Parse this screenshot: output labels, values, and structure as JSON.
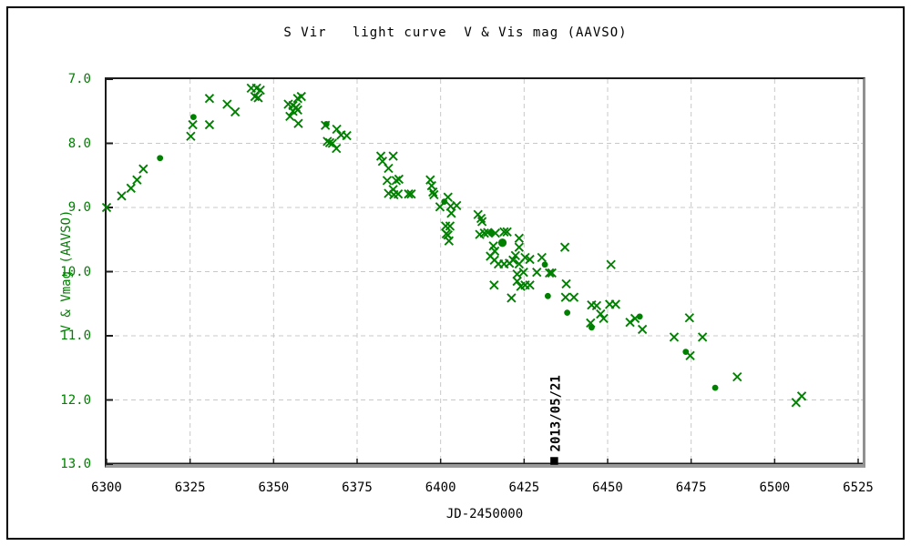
{
  "window": {
    "background": "#ffffff",
    "frame_border_color": "#000000"
  },
  "chart_data": {
    "type": "scatter",
    "title": "S Vir   light curve  V & Vis mag (AAVSO)",
    "xlabel": "JD-2450000",
    "ylabel": "V & Vmag (AAVSO)",
    "xlim": [
      6300,
      6525
    ],
    "ylim": [
      7.0,
      13.0
    ],
    "y_axis_inverted": true,
    "x_ticks": [
      6300,
      6325,
      6350,
      6375,
      6400,
      6425,
      6450,
      6475,
      6500,
      6525
    ],
    "y_ticks": [
      7.0,
      8.0,
      9.0,
      10.0,
      11.0,
      12.0,
      13.0
    ],
    "grid": {
      "style": "dashed",
      "color": "#c8c8c8"
    },
    "legend": "none",
    "colors": {
      "series_green": "#008000",
      "y_axis_text": "#008000",
      "x_axis_text": "#000000",
      "axis_dark": "#1c1c1c",
      "axis_shadow": "#9a9a9a",
      "annotation": "#000000"
    },
    "series": [
      {
        "name": "Vis",
        "marker": "x",
        "color": "#008000",
        "points": [
          [
            6300,
            9.0
          ],
          [
            6304.5,
            8.82
          ],
          [
            6307.3,
            8.7
          ],
          [
            6309.1,
            8.57
          ],
          [
            6311,
            8.4
          ],
          [
            6325.2,
            7.89
          ],
          [
            6325.8,
            7.71
          ],
          [
            6330.8,
            7.3
          ],
          [
            6330.8,
            7.71
          ],
          [
            6336.1,
            7.39
          ],
          [
            6338.5,
            7.51
          ],
          [
            6343.3,
            7.14
          ],
          [
            6344.4,
            7.27
          ],
          [
            6344.9,
            7.14
          ],
          [
            6345.4,
            7.29
          ],
          [
            6346,
            7.17
          ],
          [
            6354.4,
            7.39
          ],
          [
            6354.9,
            7.58
          ],
          [
            6355.8,
            7.41
          ],
          [
            6355.8,
            7.5
          ],
          [
            6356.7,
            7.44
          ],
          [
            6357.2,
            7.3
          ],
          [
            6357.2,
            7.48
          ],
          [
            6357.4,
            7.69
          ],
          [
            6358.3,
            7.27
          ],
          [
            6365.5,
            7.72
          ],
          [
            6366.1,
            7.97
          ],
          [
            6366.8,
            7.99
          ],
          [
            6367.6,
            8.0
          ],
          [
            6368.8,
            8.08
          ],
          [
            6368.9,
            7.78
          ],
          [
            6370.2,
            7.87
          ],
          [
            6371.9,
            7.88
          ],
          [
            6382.1,
            8.2
          ],
          [
            6382.6,
            8.28
          ],
          [
            6384.0,
            8.58
          ],
          [
            6384.4,
            8.39
          ],
          [
            6384.4,
            8.78
          ],
          [
            6385.8,
            8.2
          ],
          [
            6385.8,
            8.72
          ],
          [
            6386.0,
            8.8
          ],
          [
            6386.7,
            8.58
          ],
          [
            6387.3,
            8.79
          ],
          [
            6387.5,
            8.56
          ],
          [
            6390.4,
            8.79
          ],
          [
            6391.2,
            8.79
          ],
          [
            6396.9,
            8.57
          ],
          [
            6397.3,
            8.66
          ],
          [
            6397.7,
            8.76
          ],
          [
            6398.0,
            8.8
          ],
          [
            6399.8,
            8.99
          ],
          [
            6401.5,
            9.29
          ],
          [
            6401.7,
            9.41
          ],
          [
            6402.2,
            8.84
          ],
          [
            6402.2,
            9.43
          ],
          [
            6402.5,
            9.52
          ],
          [
            6402.8,
            9.29
          ],
          [
            6403.0,
            8.98
          ],
          [
            6403.2,
            9.09
          ],
          [
            6404.8,
            8.97
          ],
          [
            6411.2,
            9.11
          ],
          [
            6411.7,
            9.42
          ],
          [
            6412.1,
            9.17
          ],
          [
            6412.4,
            9.22
          ],
          [
            6413.1,
            9.4
          ],
          [
            6414.1,
            9.39
          ],
          [
            6414.9,
            9.76
          ],
          [
            6415.8,
            9.6
          ],
          [
            6416.0,
            10.21
          ],
          [
            6416.1,
            9.82
          ],
          [
            6416.2,
            9.68
          ],
          [
            6416.4,
            9.4
          ],
          [
            6417.3,
            9.88
          ],
          [
            6419.0,
            9.38
          ],
          [
            6419.0,
            9.88
          ],
          [
            6419.9,
            9.38
          ],
          [
            6420.6,
            9.87
          ],
          [
            6421.2,
            10.41
          ],
          [
            6421.7,
            9.82
          ],
          [
            6422.4,
            9.75
          ],
          [
            6422.9,
            10.04
          ],
          [
            6422.9,
            10.15
          ],
          [
            6423.5,
            9.48
          ],
          [
            6423.5,
            9.62
          ],
          [
            6423.5,
            9.88
          ],
          [
            6424.0,
            10.23
          ],
          [
            6424.8,
            10.01
          ],
          [
            6425.3,
            9.78
          ],
          [
            6425.3,
            10.21
          ],
          [
            6426.7,
            9.81
          ],
          [
            6426.7,
            10.21
          ],
          [
            6428.8,
            10.01
          ],
          [
            6430.3,
            9.78
          ],
          [
            6432.6,
            10.02
          ],
          [
            6433.3,
            10.02
          ],
          [
            6437.2,
            9.62
          ],
          [
            6437.4,
            10.4
          ],
          [
            6437.6,
            10.19
          ],
          [
            6439.9,
            10.4
          ],
          [
            6444.9,
            10.8
          ],
          [
            6445.2,
            10.52
          ],
          [
            6446.7,
            10.53
          ],
          [
            6447.9,
            10.66
          ],
          [
            6448.8,
            10.73
          ],
          [
            6450.6,
            10.51
          ],
          [
            6451.0,
            9.89
          ],
          [
            6452.4,
            10.51
          ],
          [
            6456.7,
            10.79
          ],
          [
            6458.2,
            10.73
          ],
          [
            6460.4,
            10.9
          ],
          [
            6469.9,
            11.02
          ],
          [
            6474.5,
            10.72
          ],
          [
            6474.7,
            11.31
          ],
          [
            6478.4,
            11.02
          ],
          [
            6488.8,
            11.64
          ],
          [
            6506.4,
            12.04
          ],
          [
            6508.1,
            11.94
          ]
        ]
      },
      {
        "name": "V",
        "marker": "filled-circle",
        "color": "#008000",
        "points": [
          [
            6316,
            8.23
          ],
          [
            6326,
            7.59
          ],
          [
            6365.8,
            7.7
          ],
          [
            6401.1,
            8.91
          ],
          [
            6415.1,
            9.4
          ],
          [
            6418.5,
            9.55,
            "large"
          ],
          [
            6431.2,
            9.89
          ],
          [
            6432.1,
            10.38
          ],
          [
            6437.9,
            10.64
          ],
          [
            6445.2,
            10.87
          ],
          [
            6459.6,
            10.7
          ],
          [
            6473.4,
            11.25
          ],
          [
            6482.2,
            11.81
          ]
        ]
      }
    ],
    "annotation": {
      "label": "2013/05/21",
      "x": 6434,
      "y": 12.95,
      "marker": "filled-square",
      "color": "#000000"
    }
  }
}
